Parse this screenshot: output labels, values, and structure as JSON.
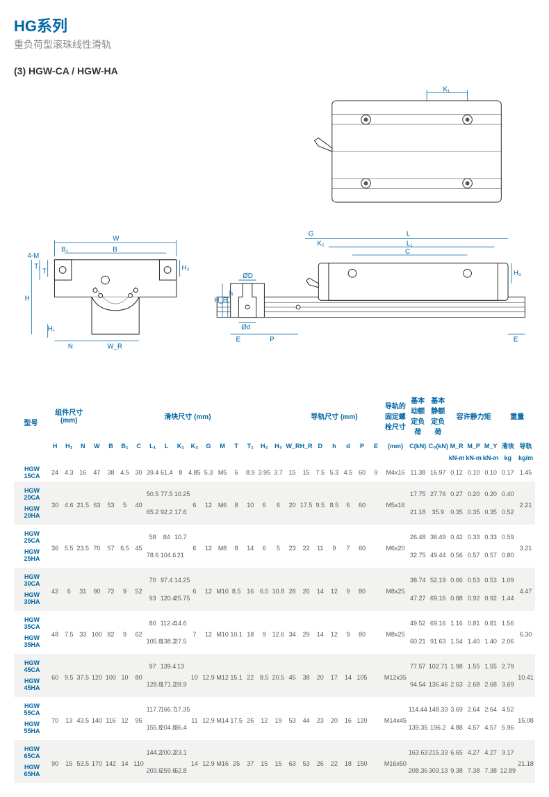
{
  "header": {
    "series": "HG系列",
    "subtitle": "重负荷型滚珠线性滑轨",
    "section": "(3) HGW-CA / HGW-HA"
  },
  "diagram": {
    "labels": {
      "K1": "K₁",
      "W": "W",
      "B1": "B₁",
      "B": "B",
      "fourM": "4-M",
      "T1": "T₁",
      "T": "T",
      "H": "H",
      "H1": "H₁",
      "N": "N",
      "WR": "W_R",
      "H2": "H₂",
      "G": "G",
      "L": "L",
      "K2": "K₂",
      "L1": "L₁",
      "C": "C",
      "ØD": "ØD",
      "Ød": "Ød",
      "HR": "H_R",
      "h": "h",
      "E": "E",
      "P": "P",
      "H3": "H₃"
    },
    "line_color": "#0066a4"
  },
  "table": {
    "groupHeaders": {
      "model": "型号",
      "assembly": "组件尺寸\n(mm)",
      "block": "滑块尺寸 (mm)",
      "rail": "导轨尺寸 (mm)",
      "bolt": "导轨的\n固定螺\n栓尺寸",
      "cdyn": "基本\n动额\n定负荷",
      "cstat": "基本\n静额\n定负荷",
      "moment": "容许静力矩",
      "weight": "重量"
    },
    "subHeaders": [
      "H",
      "H₁",
      "N",
      "W",
      "B",
      "B₁",
      "C",
      "L₁",
      "L",
      "K₁",
      "K₂",
      "G",
      "M",
      "T",
      "T₁",
      "H₂",
      "H₃",
      "W_R",
      "H_R",
      "D",
      "h",
      "d",
      "P",
      "E",
      "(mm)",
      "C(kN)",
      "C₀(kN)",
      "M_R",
      "M_P",
      "M_Y",
      "滑块",
      "导轨"
    ],
    "unitRow": [
      "",
      "",
      "",
      "",
      "",
      "",
      "",
      "",
      "",
      "",
      "",
      "",
      "",
      "",
      "",
      "",
      "",
      "",
      "",
      "",
      "",
      "",
      "",
      "",
      "",
      "",
      "",
      "kN-m",
      "kN-m",
      "kN-m",
      "kg",
      "kg/m"
    ],
    "rows": [
      {
        "stripe": false,
        "model": "HGW 15CA",
        "H": "24",
        "H1": "4.3",
        "N": "16",
        "W": "47",
        "B": "38",
        "B1": "4.5",
        "C": "30",
        "L1": "39.4",
        "L": "61.4",
        "K1": "8",
        "K2": "4.85",
        "G": "5.3",
        "M": "M5",
        "T": "6",
        "T1": "8.9",
        "H2": "3.95",
        "H3": "3.7",
        "WR": "15",
        "HR": "15",
        "D": "7.5",
        "h": "5.3",
        "d": "4.5",
        "P": "60",
        "E": "9",
        "bolt": "M4x16",
        "Cd": "11.38",
        "Cs": "16.97",
        "MR": "0.12",
        "MP": "0.10",
        "MY": "0.10",
        "wB": "0.17",
        "wR": "1.45"
      },
      {
        "stripe": true,
        "model": "HGW 20CA",
        "H": "30",
        "H1": "4.6",
        "N": "21.5",
        "W": "63",
        "B": "53",
        "B1": "5",
        "C": "40",
        "L1": "50.5",
        "L": "77.5",
        "K1": "10.25",
        "K2": "6",
        "G": "12",
        "M": "M6",
        "T": "8",
        "T1": "10",
        "H2": "6",
        "H3": "6",
        "WR": "20",
        "HR": "17.5",
        "D": "9.5",
        "h": "8.5",
        "d": "6",
        "P": "60",
        "E": "",
        "bolt": "M5x16",
        "Cd": "17.75",
        "Cs": "27.76",
        "MR": "0.27",
        "MP": "0.20",
        "MY": "0.20",
        "wB": "0.40",
        "wR": "2.21",
        "span": 2
      },
      {
        "stripe": true,
        "model": "HGW 20HA",
        "L1": "65.2",
        "L": "92.2",
        "K1": "17.6",
        "Cd": "21.18",
        "Cs": "35.9",
        "MR": "0.35",
        "MP": "0.35",
        "MY": "0.35",
        "wB": "0.52"
      },
      {
        "stripe": false,
        "model": "HGW 25CA",
        "H": "36",
        "H1": "5.5",
        "N": "23.5",
        "W": "70",
        "B": "57",
        "B1": "6.5",
        "C": "45",
        "L1": "58",
        "L": "84",
        "K1": "10.7",
        "K2": "6",
        "G": "12",
        "M": "M8",
        "T": "8",
        "T1": "14",
        "H2": "6",
        "H3": "5",
        "WR": "23",
        "HR": "22",
        "D": "11",
        "h": "9",
        "d": "7",
        "P": "60",
        "E": "",
        "bolt": "M6x20",
        "Cd": "26.48",
        "Cs": "36.49",
        "MR": "0.42",
        "MP": "0.33",
        "MY": "0.33",
        "wB": "0.59",
        "wR": "3.21",
        "span": 2
      },
      {
        "stripe": false,
        "model": "HGW 25HA",
        "L1": "78.6",
        "L": "104.6",
        "K1": "21",
        "Cd": "32.75",
        "Cs": "49.44",
        "MR": "0.56",
        "MP": "0.57",
        "MY": "0.57",
        "wB": "0.80"
      },
      {
        "stripe": true,
        "model": "HGW 30CA",
        "H": "42",
        "H1": "6",
        "N": "31",
        "W": "90",
        "B": "72",
        "B1": "9",
        "C": "52",
        "L1": "70",
        "L": "97.4",
        "K1": "14.25",
        "K2": "6",
        "G": "12",
        "M": "M10",
        "T": "8.5",
        "T1": "16",
        "H2": "6.5",
        "H3": "10.8",
        "WR": "28",
        "HR": "26",
        "D": "14",
        "h": "12",
        "d": "9",
        "P": "80",
        "E": "",
        "bolt": "M8x25",
        "Cd": "38.74",
        "Cs": "52.19",
        "MR": "0.66",
        "MP": "0.53",
        "MY": "0.53",
        "wB": "1.09",
        "wR": "4.47",
        "span": 2
      },
      {
        "stripe": true,
        "model": "HGW 30HA",
        "L1": "93",
        "L": "120.4",
        "K1": "25.75",
        "Cd": "47.27",
        "Cs": "69.16",
        "MR": "0.88",
        "MP": "0.92",
        "MY": "0.92",
        "wB": "1.44"
      },
      {
        "stripe": false,
        "model": "HGW 35CA",
        "H": "48",
        "H1": "7.5",
        "N": "33",
        "W": "100",
        "B": "82",
        "B1": "9",
        "C": "62",
        "L1": "80",
        "L": "112.4",
        "K1": "14.6",
        "K2": "7",
        "G": "12",
        "M": "M10",
        "T": "10.1",
        "T1": "18",
        "H2": "9",
        "H3": "12.6",
        "WR": "34",
        "HR": "29",
        "D": "14",
        "h": "12",
        "d": "9",
        "P": "80",
        "E": "",
        "bolt": "M8x25",
        "Cd": "49.52",
        "Cs": "69.16",
        "MR": "1.16",
        "MP": "0.81",
        "MY": "0.81",
        "wB": "1.56",
        "wR": "6.30",
        "span": 2
      },
      {
        "stripe": false,
        "model": "HGW 35HA",
        "L1": "105.8",
        "L": "138.2",
        "K1": "27.5",
        "Cd": "60.21",
        "Cs": "91.63",
        "MR": "1.54",
        "MP": "1.40",
        "MY": "1.40",
        "wB": "2.06"
      },
      {
        "stripe": true,
        "model": "HGW 45CA",
        "H": "60",
        "H1": "9.5",
        "N": "37.5",
        "W": "120",
        "B": "100",
        "B1": "10",
        "C": "80",
        "L1": "97",
        "L": "139.4",
        "K1": "13",
        "K2": "10",
        "G": "12.9",
        "M": "M12",
        "T": "15.1",
        "T1": "22",
        "H2": "8.5",
        "H3": "20.5",
        "WR": "45",
        "HR": "38",
        "D": "20",
        "h": "17",
        "d": "14",
        "P": "105",
        "E": "",
        "bolt": "M12x35",
        "Cd": "77.57",
        "Cs": "102.71",
        "MR": "1.98",
        "MP": "1.55",
        "MY": "1.55",
        "wB": "2.79",
        "wR": "10.41",
        "span": 2
      },
      {
        "stripe": true,
        "model": "HGW 45HA",
        "L1": "128.8",
        "L": "171.2",
        "K1": "28.9",
        "Cd": "94.54",
        "Cs": "136.46",
        "MR": "2.63",
        "MP": "2.68",
        "MY": "2.68",
        "wB": "3.69"
      },
      {
        "stripe": false,
        "model": "HGW 55CA",
        "H": "70",
        "H1": "13",
        "N": "43.5",
        "W": "140",
        "B": "116",
        "B1": "12",
        "C": "95",
        "L1": "117.7",
        "L": "166.7",
        "K1": "17.35",
        "K2": "11",
        "G": "12.9",
        "M": "M14",
        "T": "17.5",
        "T1": "26",
        "H2": "12",
        "H3": "19",
        "WR": "53",
        "HR": "44",
        "D": "23",
        "h": "20",
        "d": "16",
        "P": "120",
        "E": "",
        "bolt": "M14x45",
        "Cd": "114.44",
        "Cs": "148.33",
        "MR": "3.69",
        "MP": "2.64",
        "MY": "2.64",
        "wB": "4.52",
        "wR": "15.08",
        "span": 2
      },
      {
        "stripe": false,
        "model": "HGW 55HA",
        "L1": "155.8",
        "L": "204.8",
        "K1": "36.4",
        "Cd": "139.35",
        "Cs": "196.2",
        "MR": "4.88",
        "MP": "4.57",
        "MY": "4.57",
        "wB": "5.96"
      },
      {
        "stripe": true,
        "model": "HGW 65CA",
        "H": "90",
        "H1": "15",
        "N": "53.5",
        "W": "170",
        "B": "142",
        "B1": "14",
        "C": "110",
        "L1": "144.2",
        "L": "200.2",
        "K1": "23.1",
        "K2": "14",
        "G": "12.9",
        "M": "M16",
        "T": "25",
        "T1": "37",
        "H2": "15",
        "H3": "15",
        "WR": "63",
        "HR": "53",
        "D": "26",
        "h": "22",
        "d": "18",
        "P": "150",
        "E": "",
        "bolt": "M16x50",
        "Cd": "163.63",
        "Cs": "215.33",
        "MR": "6.65",
        "MP": "4.27",
        "MY": "4.27",
        "wB": "9.17",
        "wR": "21.18",
        "span": 2
      },
      {
        "stripe": true,
        "model": "HGW 65HA",
        "L1": "203.6",
        "L": "259.6",
        "K1": "52.8",
        "Cd": "208.36",
        "Cs": "303.13",
        "MR": "9.38",
        "MP": "7.38",
        "MY": "7.38",
        "wB": "12.89"
      }
    ]
  }
}
